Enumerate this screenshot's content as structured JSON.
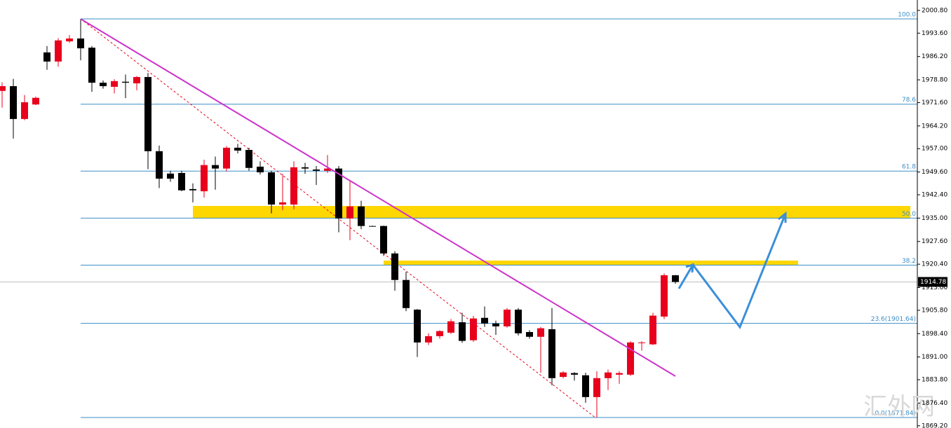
{
  "chart_data": {
    "type": "candlestick",
    "ylim": [
      1868.5,
      2004.1
    ],
    "yticks": [
      {
        "value": 2000.8,
        "label": "2000.80"
      },
      {
        "value": 1993.6,
        "label": "1993.60"
      },
      {
        "value": 1986.2,
        "label": "1986.20"
      },
      {
        "value": 1978.8,
        "label": "1978.80"
      },
      {
        "value": 1971.6,
        "label": "1971.60"
      },
      {
        "value": 1964.2,
        "label": "1964.20"
      },
      {
        "value": 1957,
        "label": "1957.00"
      },
      {
        "value": 1949.6,
        "label": "1949.60"
      },
      {
        "value": 1942.4,
        "label": "1942.40"
      },
      {
        "value": 1935,
        "label": "1935.00"
      },
      {
        "value": 1927.6,
        "label": "1927.60"
      },
      {
        "value": 1920.4,
        "label": "1920.40"
      },
      {
        "value": 1913,
        "label": "1913.00"
      },
      {
        "value": 1905.8,
        "label": "1905.80"
      },
      {
        "value": 1898.4,
        "label": "1898.40"
      },
      {
        "value": 1891,
        "label": "1891.00"
      },
      {
        "value": 1883.8,
        "label": "1883.80"
      },
      {
        "value": 1876.4,
        "label": "1876.40"
      },
      {
        "value": 1869.2,
        "label": "1869.20"
      }
    ],
    "up_color": "#e8001c",
    "down_color": "#000000",
    "open": [
      1975.3,
      1976.8,
      1966.4,
      1971.0,
      1987.5,
      1984.6,
      1991.0,
      1991.9,
      1989.0,
      1977.9,
      1976.6,
      1978.2,
      1977.7,
      1979.7,
      1956.2,
      1949.1,
      1949.3,
      1944.2,
      1943.5,
      1951.8,
      1950.7,
      1957.3,
      1956.6,
      1951.3,
      1949.5,
      1939.3,
      1939.3,
      1951.1,
      1950.4,
      1950.0,
      1950.7,
      1934.9,
      1938.7,
      1932.5,
      1932.5,
      1923.8,
      1915.4,
      1906.0,
      1895.6,
      1897.6,
      1898.7,
      1902.0,
      1896.3,
      1903.4,
      1901.6,
      1900.7,
      1906.0,
      1898.9,
      1897.4,
      1899.8,
      1884.7,
      1885.9,
      1885.2,
      1878.3,
      1884.3,
      1885.4,
      1885.4,
      1895.4,
      1895.0,
      1903.8,
      1916.9
    ],
    "high": [
      1978.0,
      1979.1,
      1974.0,
      1973.5,
      1989.5,
      1992.0,
      1993.0,
      1998.1,
      1989.5,
      1978.6,
      1979.0,
      1980.5,
      1980.0,
      1981.0,
      1958.0,
      1950.0,
      1950.0,
      1946.0,
      1953.5,
      1954.5,
      1957.8,
      1958.5,
      1957.3,
      1953.0,
      1950.0,
      1949.0,
      1953.0,
      1952.5,
      1951.5,
      1955.0,
      1951.5,
      1947.0,
      1940.5,
      1932.6,
      1932.6,
      1924.5,
      1918.0,
      1906.2,
      1898.5,
      1899.5,
      1903.0,
      1905.0,
      1904.0,
      1907.0,
      1902.5,
      1906.5,
      1906.5,
      1899.5,
      1900.5,
      1906.5,
      1886.5,
      1886.2,
      1886.0,
      1886.5,
      1887.0,
      1886.5,
      1896.0,
      1896.0,
      1905.0,
      1917.5,
      1917.0
    ],
    "low": [
      1970.0,
      1960.2,
      1966.0,
      1970.8,
      1982.0,
      1983.0,
      1990.5,
      1985.0,
      1975.0,
      1976.0,
      1974.5,
      1973.0,
      1975.5,
      1950.5,
      1944.5,
      1946.5,
      1943.5,
      1940.0,
      1941.5,
      1944.0,
      1949.8,
      1955.5,
      1950.0,
      1948.8,
      1936.5,
      1937.5,
      1937.8,
      1949.0,
      1945.5,
      1949.3,
      1930.5,
      1928.0,
      1931.5,
      1932.4,
      1923.0,
      1912.0,
      1905.5,
      1891.0,
      1894.8,
      1896.8,
      1898.3,
      1895.5,
      1895.8,
      1900.5,
      1898.0,
      1900.3,
      1897.8,
      1896.8,
      1886.0,
      1882.0,
      1884.2,
      1883.5,
      1876.5,
      1871.8,
      1880.5,
      1882.5,
      1885.0,
      1893.0,
      1894.8,
      1903.0,
      1914.2
    ],
    "close": [
      1976.8,
      1966.4,
      1971.7,
      1973.1,
      1984.6,
      1991.3,
      1991.9,
      1988.8,
      1977.9,
      1976.8,
      1978.4,
      1977.9,
      1979.7,
      1956.2,
      1947.5,
      1947.5,
      1943.8,
      1943.8,
      1951.8,
      1950.7,
      1957.3,
      1956.4,
      1950.9,
      1949.5,
      1939.3,
      1940.0,
      1951.1,
      1950.7,
      1950.0,
      1950.7,
      1934.9,
      1938.7,
      1932.5,
      1932.5,
      1923.8,
      1915.4,
      1906.5,
      1895.6,
      1897.6,
      1899.2,
      1902.3,
      1896.1,
      1903.2,
      1901.6,
      1900.7,
      1906.0,
      1898.5,
      1897.4,
      1900.1,
      1884.3,
      1886.1,
      1885.4,
      1878.3,
      1884.3,
      1886.1,
      1885.9,
      1895.6,
      1895.6,
      1904.1,
      1916.9,
      1914.78
    ],
    "fib_levels": [
      {
        "label": "100.0",
        "price": 1998.1
      },
      {
        "label": "78.6",
        "price": 1971.1
      },
      {
        "label": "61.8",
        "price": 1949.9
      },
      {
        "label": "50.0",
        "price": 1935.0
      },
      {
        "label": "38.2",
        "price": 1920.1
      },
      {
        "label": "23.6(1901.64)",
        "price": 1901.64
      },
      {
        "label": "0.0(1871.84)",
        "price": 1871.84
      }
    ],
    "fib_color": "#3d8fc6",
    "current_price": {
      "value": 1914.78,
      "label": "1914.78"
    },
    "watermark": "汇外网"
  }
}
